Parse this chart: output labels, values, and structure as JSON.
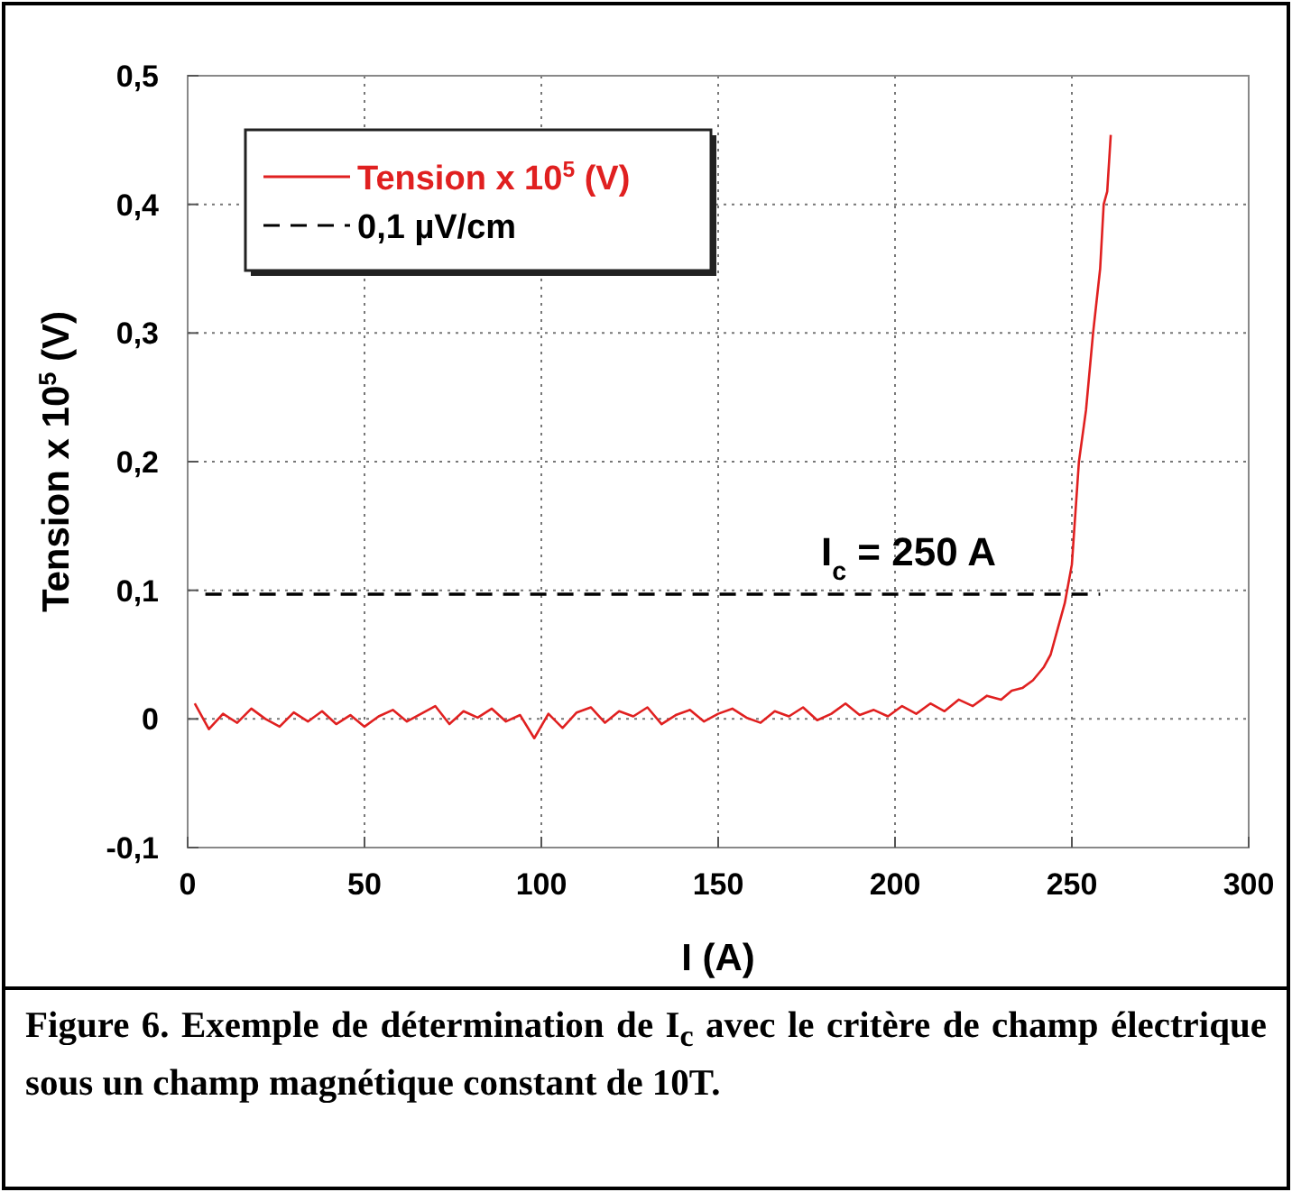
{
  "chart_data": {
    "type": "line",
    "xlabel": "I (A)",
    "ylabel": "Tension x 10$^{5}$ (V)",
    "xlim": [
      0,
      300
    ],
    "xticks": [
      0,
      50,
      100,
      150,
      200,
      250,
      300
    ],
    "ylim": [
      -0.1,
      0.5
    ],
    "yticks": [
      {
        "value": -0.1,
        "label": "-0,1"
      },
      {
        "value": 0,
        "label": "0"
      },
      {
        "value": 0.1,
        "label": "0,1"
      },
      {
        "value": 0.2,
        "label": "0,2"
      },
      {
        "value": 0.3,
        "label": "0,3"
      },
      {
        "value": 0.4,
        "label": "0,4"
      },
      {
        "value": 0.5,
        "label": "0,5"
      }
    ],
    "grid": true,
    "legend": "top left",
    "series": [
      {
        "name": "Tension x 10$^{5}$ (V)",
        "color": "#e02020",
        "line_style": "solid",
        "x": [
          2,
          6,
          10,
          14,
          18,
          22,
          26,
          30,
          34,
          38,
          42,
          46,
          50,
          54,
          58,
          62,
          66,
          70,
          74,
          78,
          82,
          86,
          90,
          94,
          98,
          102,
          106,
          110,
          114,
          118,
          122,
          126,
          130,
          134,
          138,
          142,
          146,
          150,
          154,
          158,
          162,
          166,
          170,
          174,
          178,
          182,
          186,
          190,
          194,
          198,
          202,
          206,
          210,
          214,
          218,
          222,
          226,
          230,
          233,
          236,
          239,
          242,
          244,
          246,
          248,
          250,
          252,
          254,
          256,
          258,
          259,
          260,
          261
        ],
        "values": [
          0.012,
          -0.008,
          0.004,
          -0.003,
          0.008,
          0,
          -0.006,
          0.005,
          -0.002,
          0.006,
          -0.004,
          0.003,
          -0.006,
          0.002,
          0.007,
          -0.002,
          0.004,
          0.01,
          -0.004,
          0.006,
          0.001,
          0.008,
          -0.002,
          0.003,
          -0.015,
          0.004,
          -0.007,
          0.005,
          0.009,
          -0.003,
          0.006,
          0.002,
          0.009,
          -0.004,
          0.003,
          0.007,
          -0.002,
          0.004,
          0.008,
          0.001,
          -0.003,
          0.006,
          0.002,
          0.009,
          -0.001,
          0.004,
          0.012,
          0.003,
          0.007,
          0.002,
          0.01,
          0.004,
          0.012,
          0.006,
          0.015,
          0.01,
          0.018,
          0.015,
          0.022,
          0.024,
          0.03,
          0.04,
          0.05,
          0.07,
          0.09,
          0.12,
          0.2,
          0.24,
          0.3,
          0.35,
          0.4,
          0.41,
          0.454
        ]
      },
      {
        "name": "0,1 µV/cm",
        "color": "#000000",
        "line_style": "dashed",
        "x": [
          5,
          258
        ],
        "values": [
          0.097,
          0.097
        ]
      }
    ],
    "annotations": [
      {
        "text": "I$_{c}$ = 250 A",
        "x": 250,
        "y": 0.097
      },
      "Figure 6. Exemple de détermination de I$_{c}$ avec le critère de champ électrique sous un champ magnétique constant de 10T."
    ]
  }
}
